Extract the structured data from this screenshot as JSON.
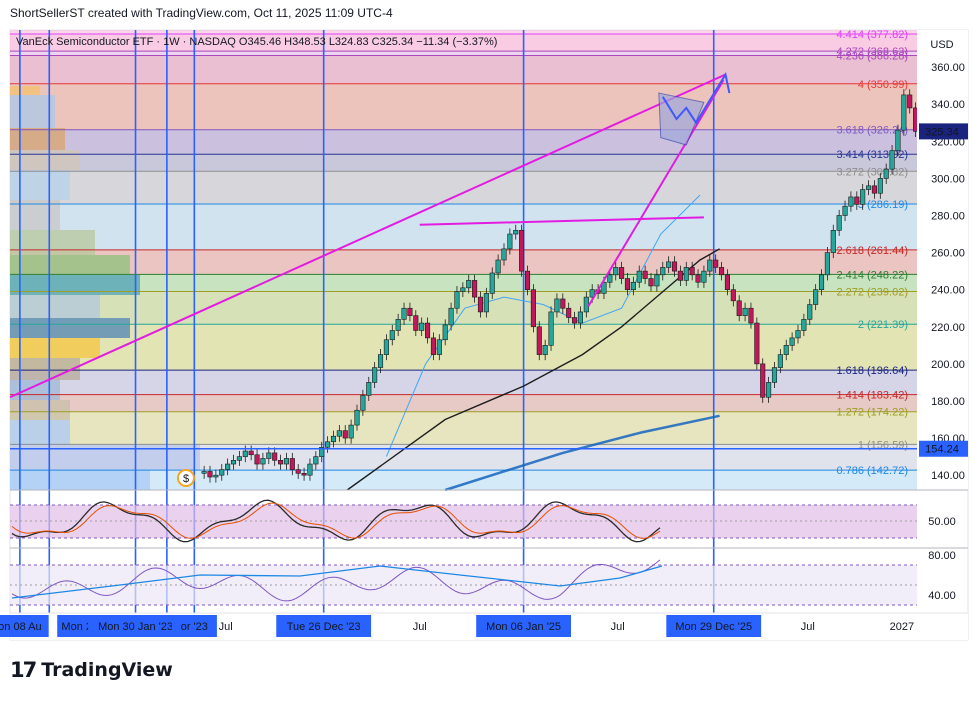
{
  "header": {
    "credit": "ShortSellerST created with TradingView.com, Oct 11, 2025 11:09 UTC-4"
  },
  "logo": {
    "mark": "17",
    "text": "TradingView"
  },
  "chart_data": {
    "type": "candlestick",
    "symbol_line": "VanEck Semiconductor ETF · 1W · NASDAQ  O345.46  H348.53  L324.83  C325.34  −11.34 (−3.37%)",
    "currency": "USD",
    "ohlc": {
      "open": 345.46,
      "high": 348.53,
      "low": 324.83,
      "close": 325.34,
      "change": -11.34,
      "change_pct": -3.37
    },
    "last_price_label": "325.34",
    "ref_price_label": "154.24",
    "ref_price": 154.24,
    "ylim": [
      132,
      380
    ],
    "y_ticks": [
      140,
      160,
      180,
      200,
      220,
      240,
      260,
      280,
      300,
      320,
      340,
      360
    ],
    "x_labels": [
      {
        "label": "on 08 Au",
        "t": 0.3
      },
      {
        "label": "Mon 2",
        "t": 3.2
      },
      {
        "label": "Mon 30 Jan '23",
        "t": 6.2
      },
      {
        "label": "or '23",
        "t": 9.2
      },
      {
        "label": "Jul",
        "t": 10.8
      },
      {
        "label": "Tue 26 Dec '23",
        "t": 15.8
      },
      {
        "label": "Jul",
        "t": 20.7
      },
      {
        "label": "Mon 06 Jan '25",
        "t": 26.0
      },
      {
        "label": "Jul",
        "t": 30.8
      },
      {
        "label": "Mon 29 Dec '25",
        "t": 35.7
      },
      {
        "label": "Jul",
        "t": 40.5
      },
      {
        "label": "2027",
        "t": 45.3
      }
    ],
    "highlighted_x_labels": [
      "on 08 Au",
      "Mon 2",
      "Mon 30 Jan '23",
      "or '23",
      "Tue 26 Dec '23",
      "Mon 06 Jan '25",
      "Mon 29 Dec '25"
    ],
    "fib_levels": [
      {
        "ratio": "4.414",
        "price": 377.82,
        "color": "#e040fb"
      },
      {
        "ratio": "4.272",
        "price": 368.63,
        "color": "#ab47bc"
      },
      {
        "ratio": "4.236",
        "price": 366.28,
        "color": "#ab47bc"
      },
      {
        "ratio": "4",
        "price": 350.99,
        "color": "#e53935"
      },
      {
        "ratio": "3.618",
        "price": 326.24,
        "color": "#7e57c2"
      },
      {
        "ratio": "3.414",
        "price": 313.02,
        "color": "#283593"
      },
      {
        "ratio": "3.272",
        "price": 303.82,
        "color": "#8d8d8d"
      },
      {
        "ratio": "3",
        "price": 286.19,
        "color": "#1e88e5"
      },
      {
        "ratio": "2.618",
        "price": 261.44,
        "color": "#c62828"
      },
      {
        "ratio": "2.414",
        "price": 248.22,
        "color": "#2e7d32"
      },
      {
        "ratio": "2.272",
        "price": 239.02,
        "color": "#9e9d24"
      },
      {
        "ratio": "2",
        "price": 221.39,
        "color": "#26a69a"
      },
      {
        "ratio": "1.618",
        "price": 196.64,
        "color": "#1a237e"
      },
      {
        "ratio": "1.414",
        "price": 183.42,
        "color": "#c62828"
      },
      {
        "ratio": "1.272",
        "price": 174.22,
        "color": "#9e9d24"
      },
      {
        "ratio": "1",
        "price": 156.59,
        "color": "#8d8d8d"
      },
      {
        "ratio": "0.786",
        "price": 142.72,
        "color": "#1e88e5"
      }
    ],
    "candles_close": [
      142,
      139,
      140,
      143,
      146,
      148,
      150,
      153,
      151,
      146,
      149,
      152,
      148,
      146,
      149,
      143,
      141,
      140,
      146,
      150,
      155,
      158,
      161,
      164,
      160,
      167,
      175,
      183,
      190,
      198,
      205,
      213,
      218,
      224,
      230,
      226,
      218,
      222,
      214,
      205,
      213,
      221,
      230,
      239,
      241,
      245,
      236,
      228,
      238,
      249,
      256,
      262,
      270,
      272,
      250,
      240,
      220,
      205,
      210,
      228,
      235,
      230,
      225,
      222,
      228,
      236,
      240,
      238,
      244,
      248,
      252,
      246,
      240,
      244,
      250,
      246,
      242,
      248,
      252,
      255,
      250,
      245,
      252,
      248,
      244,
      250,
      256,
      252,
      248,
      240,
      234,
      226,
      230,
      222,
      200,
      182,
      190,
      198,
      205,
      210,
      214,
      218,
      224,
      232,
      240,
      248,
      260,
      272,
      280,
      285,
      290,
      286,
      294,
      296,
      292,
      300,
      305,
      315,
      326,
      345,
      338,
      325.34
    ],
    "indicator_pane_1": {
      "label": "50.00"
    },
    "indicator_pane_2": {
      "label_high": "80.00",
      "label_low": "40.00"
    },
    "colors": {
      "up": "#26a69a",
      "down": "#c2185b",
      "trendline": "#e21ce0",
      "vertical": "#2962ff",
      "ma_black": "#222222",
      "ma_blue": "#1565c0",
      "price_tag": "#1a237e",
      "ref_tag": "#2962ff"
    }
  }
}
